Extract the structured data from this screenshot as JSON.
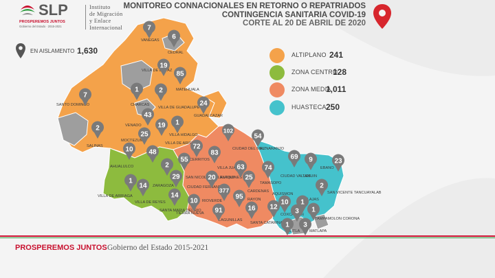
{
  "logo": {
    "brand": "SLP",
    "tagline": "PROSPEREMOS JUNTOS",
    "subtitle": "Gobierno del Estado ∙ 2015-2021",
    "institute": [
      "Instituto",
      "de Migración",
      "y Enlace",
      "Internacional"
    ]
  },
  "title": {
    "line1": "MONITOREO CONNACIONALES EN RETORNO O REPATRIADOS",
    "line2": "CONTINGENCIA SANITARIA COVID-19",
    "line3": "CORTE AL 20 DE ABRIL DE 2020",
    "pin_color": "#d7262d"
  },
  "isolation": {
    "label": "EN AISLAMENTO",
    "value": "1,630"
  },
  "legend": [
    {
      "label": "ALTIPLANO",
      "value": "241",
      "color": "#f4a24a"
    },
    {
      "label": "ZONA CENTRO",
      "value": "128",
      "color": "#8dbb3e"
    },
    {
      "label": "ZONA MEDIA",
      "value": "1,011",
      "color": "#ef8a62"
    },
    {
      "label": "HUASTECA",
      "value": "250",
      "color": "#45c2cc"
    }
  ],
  "map": {
    "colors": {
      "altiplano": "#f4a24a",
      "centro": "#8dbb3e",
      "media": "#ef8a62",
      "huasteca": "#45c2cc",
      "no_data": "#9e9e9e",
      "pin": "#7a7a7a"
    },
    "municipios": [
      "VANEGAS",
      "CEDRAL",
      "VILLA DE LA PAZ",
      "MATEHUALA",
      "SANTO DOMINGO",
      "CHARCAS",
      "VILLA DE GUADALUPE",
      "GUADALCAZAR",
      "VENADO",
      "MOCTEZUMA",
      "VILLA HIDALGO",
      "VILLA DE ARISTA",
      "SALINAS",
      "CIUDAD DEL MAIZ",
      "EL NARANJO",
      "AHUALULCO",
      "CERRITOS",
      "VILLA JUAREZ",
      "VILLA DE ARRIAGA",
      "VILLA DE REYES",
      "SANTA MARIA DEL RIO",
      "TIERRA NUEVA",
      "ZARAGOZA",
      "SAN NICOLAS TOLENTINO",
      "CIUDAD FERNANDEZ",
      "RIOVERDE",
      "ALAQUINES",
      "CARDENAS",
      "RAYON",
      "TAMASOPO",
      "CIUDAD VALLES",
      "TAMUIN",
      "EBANO",
      "SAN VICENTE TANCUAYALAB",
      "TANLAJAS",
      "AQUISMON",
      "SANTA CATARINA",
      "LAGUNILLAS",
      "COXCATLAN",
      "TAMPAMOLON CORONA",
      "MATLAPA",
      "XILITLA"
    ],
    "pins": [
      {
        "value": "7",
        "municipio": "VANEGAS"
      },
      {
        "value": "6",
        "municipio": "CEDRAL"
      },
      {
        "value": "19",
        "municipio": "VILLA DE LA PAZ"
      },
      {
        "value": "85",
        "municipio": "MATEHUALA"
      },
      {
        "value": "7",
        "municipio": "SANTO DOMINGO"
      },
      {
        "value": "1",
        "municipio": "CHARCAS"
      },
      {
        "value": "2",
        "municipio": "VILLA DE GUADALUPE"
      },
      {
        "value": "24",
        "municipio": "GUADALCAZAR"
      },
      {
        "value": "43",
        "municipio": "VENADO"
      },
      {
        "value": "19",
        "municipio": "VILLA HIDALGO"
      },
      {
        "value": "1",
        "municipio": "VILLA HIDALGO"
      },
      {
        "value": "2",
        "municipio": "SALINAS"
      },
      {
        "value": "25",
        "municipio": "MOCTEZUMA"
      },
      {
        "value": "48",
        "municipio": "VILLA DE ARISTA"
      },
      {
        "value": "102",
        "municipio": "CIUDAD DEL MAIZ"
      },
      {
        "value": "54",
        "municipio": "EL NARANJO"
      },
      {
        "value": "10",
        "municipio": "AHUALULCO"
      },
      {
        "value": "72",
        "municipio": "CERRITOS"
      },
      {
        "value": "83",
        "municipio": "VILLA JUAREZ"
      },
      {
        "value": "2",
        "municipio": "ZARAGOZA"
      },
      {
        "value": "55",
        "municipio": "ZARAGOZA"
      },
      {
        "value": "63",
        "municipio": "ALAQUINES"
      },
      {
        "value": "74",
        "municipio": "TAMASOPO"
      },
      {
        "value": "69",
        "municipio": "CIUDAD VALLES"
      },
      {
        "value": "9",
        "municipio": "TAMUIN"
      },
      {
        "value": "23",
        "municipio": "EBANO"
      },
      {
        "value": "1",
        "municipio": "VILLA DE ARRIAGA"
      },
      {
        "value": "14",
        "municipio": "VILLA DE REYES"
      },
      {
        "value": "29",
        "municipio": "SAN NICOLAS TOLENTINO"
      },
      {
        "value": "20",
        "municipio": "CIUDAD FERNANDEZ"
      },
      {
        "value": "377",
        "municipio": "RIOVERDE"
      },
      {
        "value": "25",
        "municipio": "CARDENAS"
      },
      {
        "value": "2",
        "municipio": "SAN VICENTE TANCUAYALAB"
      },
      {
        "value": "14",
        "municipio": "SANTA MARIA DEL RIO"
      },
      {
        "value": "10",
        "municipio": "TIERRA NUEVA"
      },
      {
        "value": "95",
        "municipio": "RAYON"
      },
      {
        "value": "1",
        "municipio": "TANLAJAS"
      },
      {
        "value": "91",
        "municipio": "LAGUNILLAS"
      },
      {
        "value": "16",
        "municipio": "SANTA CATARINA"
      },
      {
        "value": "12",
        "municipio": "AQUISMON"
      },
      {
        "value": "10",
        "municipio": "COXCATLAN"
      },
      {
        "value": "3",
        "municipio": "TAMPAMOLON CORONA"
      },
      {
        "value": "1",
        "municipio": "TAMPAMOLON CORONA"
      },
      {
        "value": "1",
        "municipio": "XILITLA"
      },
      {
        "value": "3",
        "municipio": "MATLAPA"
      }
    ]
  },
  "footer": {
    "brand": "PROSPEREMOS JUNTOS",
    "government": "Gobierno del Estado 2015-2021"
  }
}
